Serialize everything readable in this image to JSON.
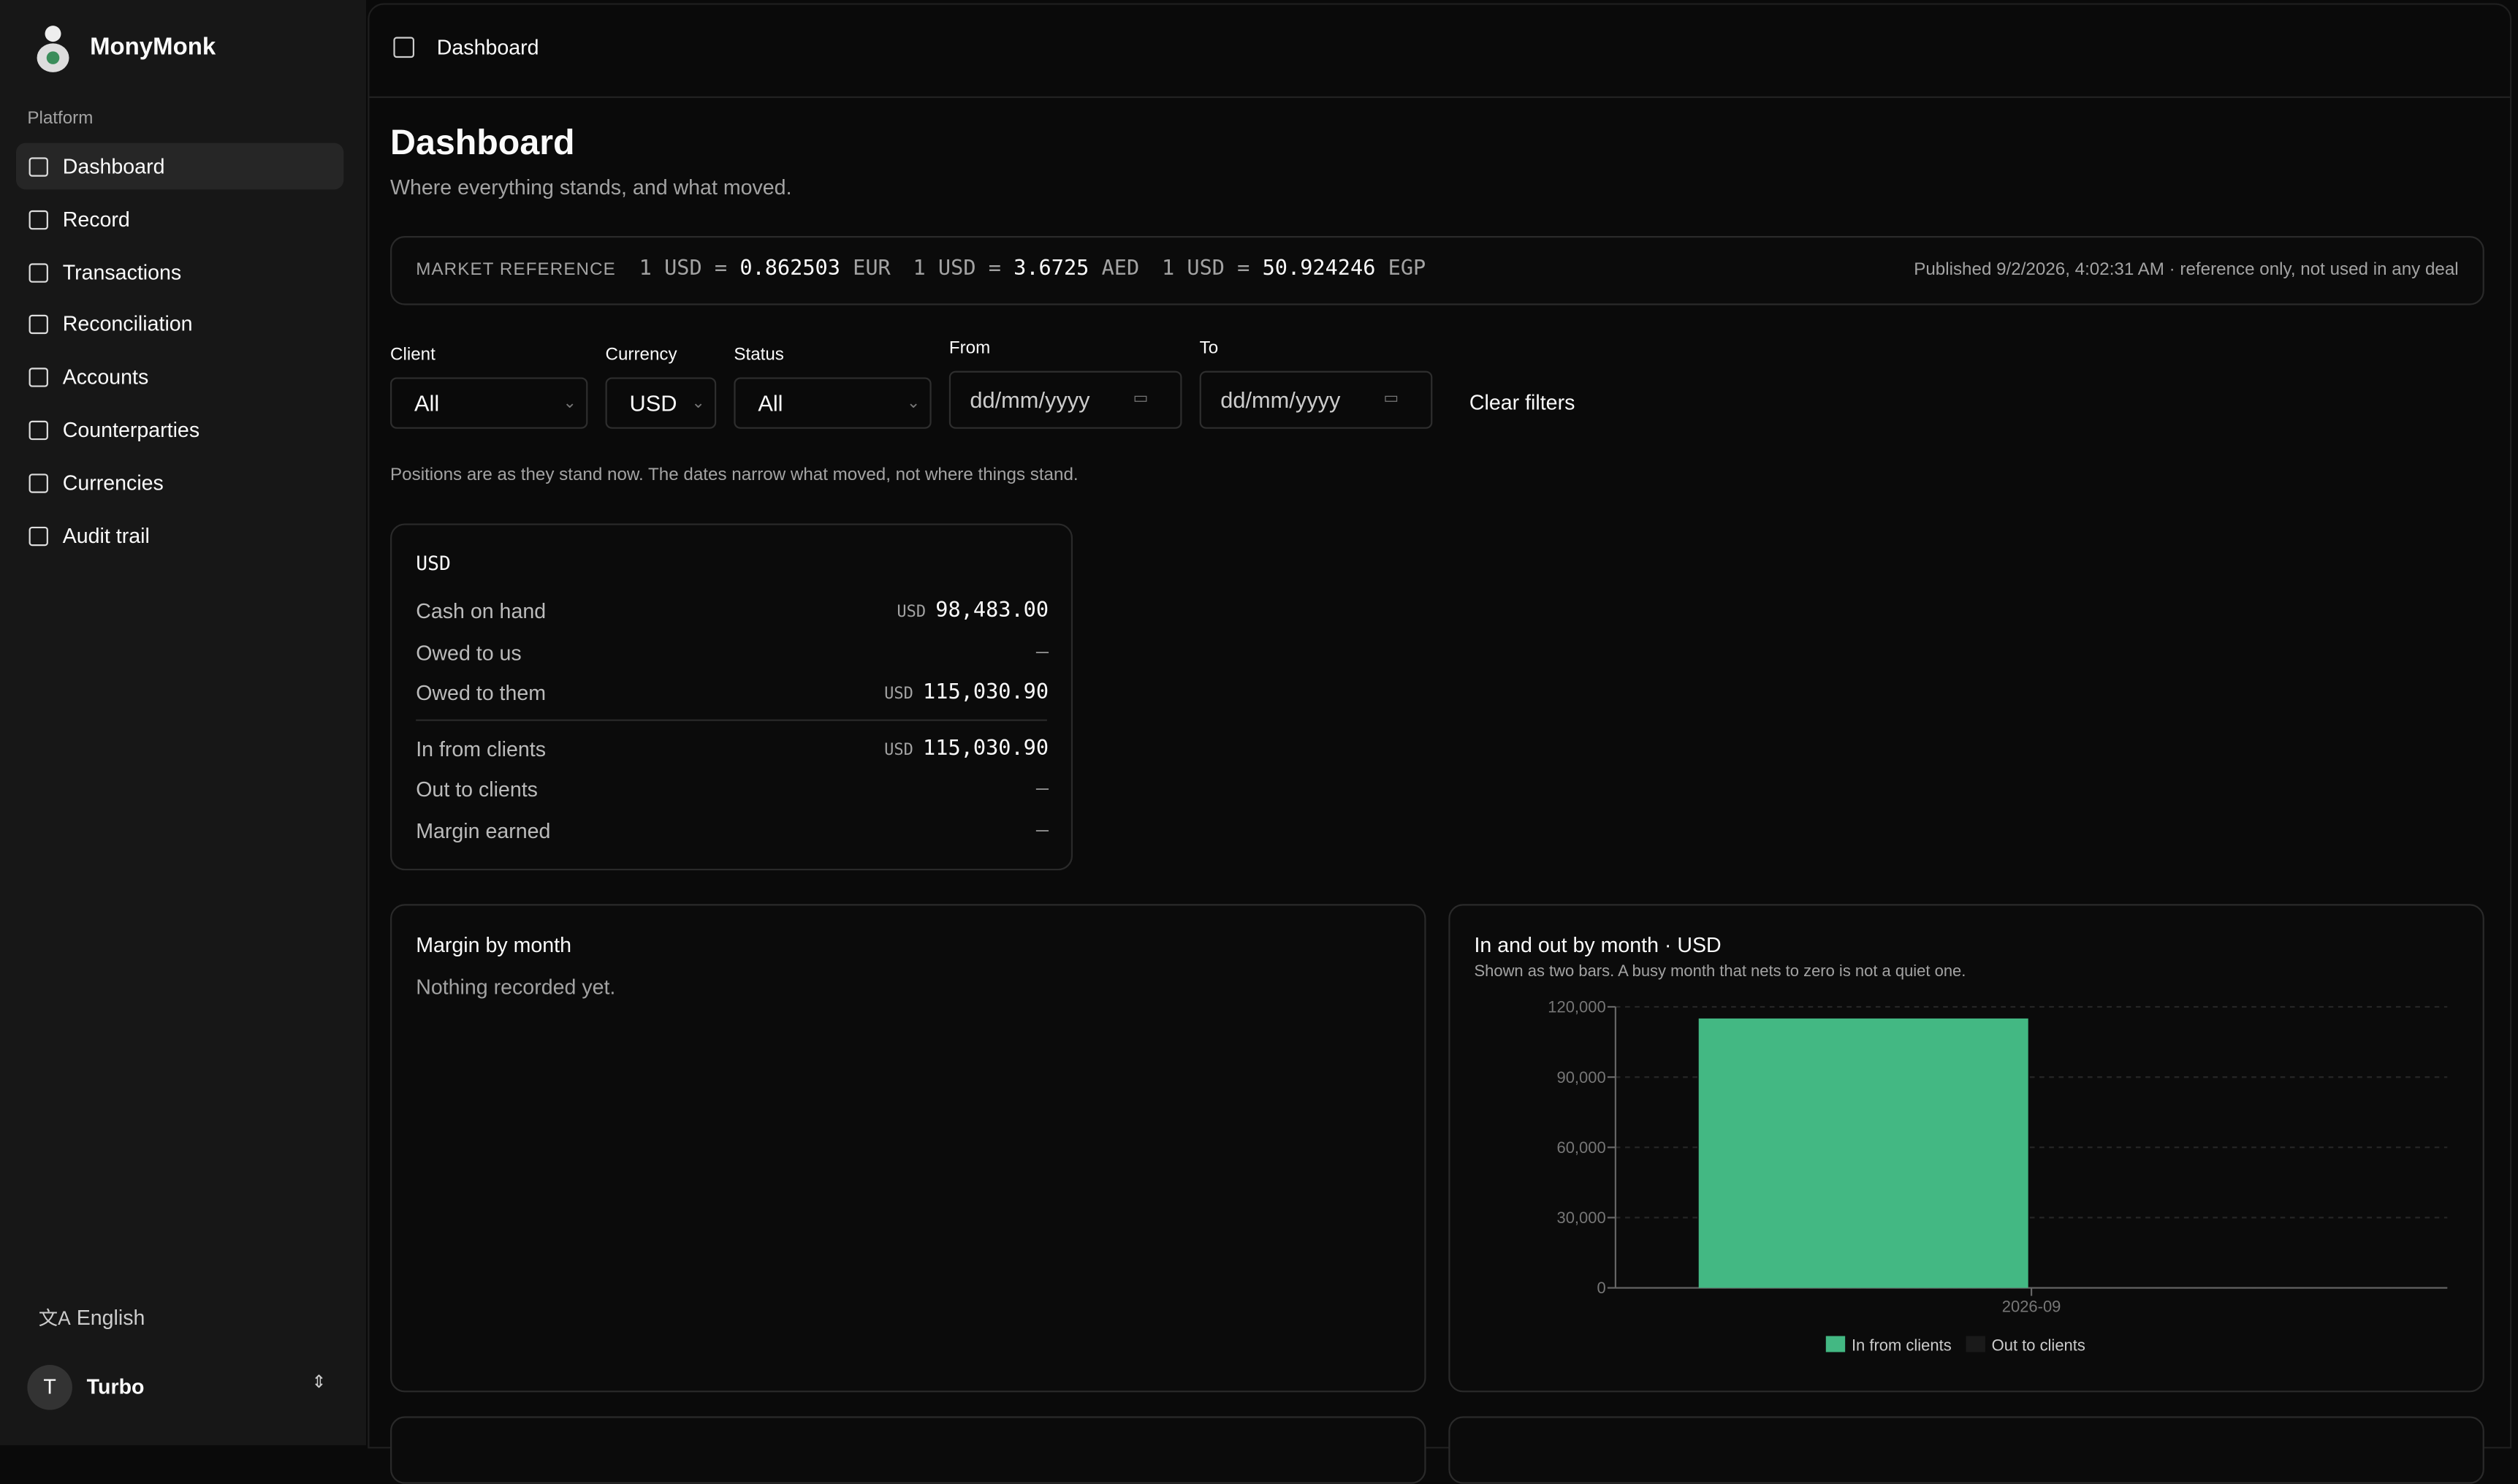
{
  "sidebar": {
    "brand": "MonyMonk",
    "section": "Platform",
    "nav": [
      "Dashboard",
      "Record",
      "Transactions",
      "Reconciliation",
      "Accounts",
      "Counterparties",
      "Currencies",
      "Audit trail"
    ],
    "language": "English",
    "user_initial": "T",
    "user_name": "Turbo"
  },
  "header": {
    "breadcrumb": "Dashboard",
    "title": "Dashboard",
    "subtitle": "Where everything stands, and what moved."
  },
  "market": {
    "label": "MARKET REFERENCE",
    "rates": [
      [
        "1 USD =",
        "0.862503",
        "EUR"
      ],
      [
        "1 USD =",
        "3.6725",
        "AED"
      ],
      [
        "1 USD =",
        "50.924246",
        "EGP"
      ]
    ],
    "published": "Published 9/2/2026, 4:02:31 AM · reference only, not used in any deal"
  },
  "filters": {
    "fields": [
      {
        "label": "Client",
        "value": "All"
      },
      {
        "label": "Currency",
        "value": "USD"
      },
      {
        "label": "Status",
        "value": "All"
      },
      {
        "label": "From",
        "value": "dd/mm/yyyy"
      },
      {
        "label": "To",
        "value": "dd/mm/yyyy"
      }
    ],
    "clear": "Clear filters"
  },
  "note": "Positions are as they stand now. The dates narrow what moved, not where things stand.",
  "balance_card": {
    "currency": "USD",
    "rows": [
      {
        "label": "Cash on hand",
        "unit": "USD",
        "amount": "98,483.00"
      },
      {
        "label": "Owed to us",
        "amount": "—"
      },
      {
        "label": "Owed to them",
        "unit": "USD",
        "amount": "115,030.90"
      },
      {
        "label": "In from clients",
        "unit": "USD",
        "amount": "115,030.90"
      },
      {
        "label": "Out to clients",
        "amount": "—"
      },
      {
        "label": "Margin earned",
        "amount": "—"
      }
    ]
  },
  "margin_card": {
    "title": "Margin by month",
    "empty": "Nothing recorded yet."
  },
  "chart_data": {
    "type": "bar",
    "title": "In and out by month · USD",
    "subtitle": "Shown as two bars. A busy month that nets to zero is not a quiet one.",
    "categories": [
      "2026-09"
    ],
    "series": [
      {
        "name": "In from clients",
        "color": "#43b883",
        "values": [
          115030.9
        ]
      },
      {
        "name": "Out to clients",
        "color": "#1a1a1a",
        "values": [
          null
        ]
      }
    ],
    "ylim": [
      0,
      120000
    ],
    "yticks": [
      0,
      {
        "value": 30000,
        "label": "30,000"
      },
      {
        "value": 60000,
        "label": "60,000"
      },
      {
        "value": 90000,
        "label": "90,000"
      },
      {
        "value": 120000,
        "label": "120,000"
      }
    ],
    "grid": true
  }
}
